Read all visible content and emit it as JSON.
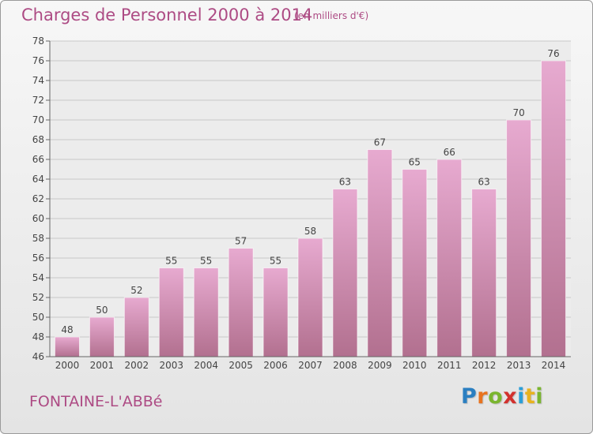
{
  "header": {
    "title": "Charges de Personnel 2000 à 2014",
    "unit_note": "(en milliers d'€)"
  },
  "footer": {
    "location": "FONTAINE-L'ABBé",
    "brand_letters": [
      "P",
      "r",
      "o",
      "x",
      "i",
      "t",
      "i"
    ],
    "brand_colors": [
      "#2b7fc1",
      "#e8731f",
      "#7ab52f",
      "#d2312e",
      "#2b9fd8",
      "#e8b21f",
      "#7ab52f"
    ]
  },
  "colors": {
    "bar_top": "#e7aad0",
    "bar_bottom": "#b2708f",
    "text_accent": "#ad4b84",
    "grid": "#c8c8c8"
  },
  "chart_data": {
    "type": "bar",
    "categories": [
      "2000",
      "2001",
      "2002",
      "2003",
      "2004",
      "2005",
      "2006",
      "2007",
      "2008",
      "2009",
      "2010",
      "2011",
      "2012",
      "2013",
      "2014"
    ],
    "values": [
      48,
      50,
      52,
      55,
      55,
      57,
      55,
      58,
      63,
      67,
      65,
      66,
      63,
      70,
      76
    ],
    "ylim": [
      46,
      78
    ],
    "yticks": [
      46,
      48,
      50,
      52,
      54,
      56,
      58,
      60,
      62,
      64,
      66,
      68,
      70,
      72,
      74,
      76,
      78
    ],
    "grid": true,
    "data_labels": true
  }
}
